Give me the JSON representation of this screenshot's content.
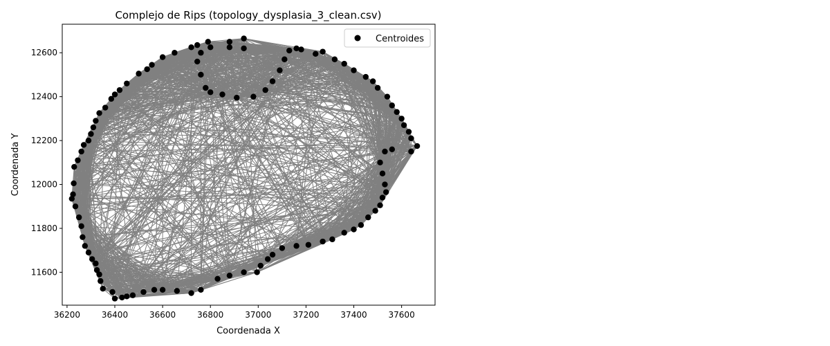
{
  "chart_data": {
    "type": "scatter",
    "title": "Complejo de Rips (topology_dysplasia_3_clean.csv)",
    "xlabel": "Coordenada X",
    "ylabel": "Coordenada Y",
    "xlim": [
      36180,
      37740
    ],
    "ylim": [
      11450,
      12730
    ],
    "xticks": [
      36200,
      36400,
      36600,
      36800,
      37000,
      37200,
      37400,
      37600
    ],
    "yticks": [
      11600,
      11800,
      12000,
      12200,
      12400,
      12600
    ],
    "grid": false,
    "legend": {
      "position": "top-right",
      "entries": [
        "Centroides"
      ]
    },
    "series": [
      {
        "name": "Centroides",
        "marker_color": "#000000",
        "edge_color": "#808080",
        "boundary_points": [
          [
            36940,
            12665
          ],
          [
            36880,
            12650
          ],
          [
            36790,
            12650
          ],
          [
            36745,
            12635
          ],
          [
            36720,
            12625
          ],
          [
            36650,
            12600
          ],
          [
            36600,
            12580
          ],
          [
            36555,
            12545
          ],
          [
            36535,
            12525
          ],
          [
            36500,
            12505
          ],
          [
            36450,
            12460
          ],
          [
            36420,
            12430
          ],
          [
            36400,
            12410
          ],
          [
            36385,
            12390
          ],
          [
            36360,
            12350
          ],
          [
            36335,
            12325
          ],
          [
            36320,
            12290
          ],
          [
            36310,
            12260
          ],
          [
            36300,
            12230
          ],
          [
            36290,
            12200
          ],
          [
            36270,
            12180
          ],
          [
            36260,
            12150
          ],
          [
            36245,
            12110
          ],
          [
            36230,
            12080
          ],
          [
            36228,
            12005
          ],
          [
            36225,
            11955
          ],
          [
            36220,
            11935
          ],
          [
            36235,
            11900
          ],
          [
            36250,
            11850
          ],
          [
            36260,
            11810
          ],
          [
            36265,
            11760
          ],
          [
            36275,
            11720
          ],
          [
            36290,
            11690
          ],
          [
            36305,
            11660
          ],
          [
            36320,
            11640
          ],
          [
            36325,
            11610
          ],
          [
            36335,
            11590
          ],
          [
            36340,
            11560
          ],
          [
            36350,
            11525
          ],
          [
            36390,
            11510
          ],
          [
            36400,
            11480
          ],
          [
            36430,
            11485
          ],
          [
            36450,
            11490
          ],
          [
            36475,
            11495
          ],
          [
            36520,
            11510
          ],
          [
            36565,
            11520
          ],
          [
            36600,
            11520
          ],
          [
            36660,
            11515
          ],
          [
            36720,
            11505
          ],
          [
            36760,
            11520
          ],
          [
            36830,
            11570
          ],
          [
            36880,
            11585
          ],
          [
            36940,
            11600
          ],
          [
            36995,
            11600
          ],
          [
            37010,
            11630
          ],
          [
            37040,
            11660
          ],
          [
            37060,
            11680
          ],
          [
            37100,
            11710
          ],
          [
            37160,
            11720
          ],
          [
            37210,
            11725
          ],
          [
            37270,
            11740
          ],
          [
            37310,
            11750
          ],
          [
            37360,
            11780
          ],
          [
            37400,
            11795
          ],
          [
            37430,
            11815
          ],
          [
            37460,
            11850
          ],
          [
            37490,
            11880
          ],
          [
            37510,
            11905
          ],
          [
            37520,
            11940
          ],
          [
            37535,
            11965
          ],
          [
            37530,
            12000
          ],
          [
            37520,
            12050
          ],
          [
            37510,
            12100
          ],
          [
            37530,
            12150
          ],
          [
            37560,
            12160
          ],
          [
            37640,
            12150
          ],
          [
            37665,
            12175
          ],
          [
            37640,
            12210
          ],
          [
            37630,
            12240
          ],
          [
            37610,
            12270
          ],
          [
            37600,
            12300
          ],
          [
            37580,
            12330
          ],
          [
            37560,
            12360
          ],
          [
            37540,
            12400
          ],
          [
            37500,
            12440
          ],
          [
            37480,
            12470
          ],
          [
            37450,
            12490
          ],
          [
            37400,
            12520
          ],
          [
            37360,
            12550
          ],
          [
            37320,
            12570
          ],
          [
            37270,
            12605
          ],
          [
            37240,
            12595
          ],
          [
            37180,
            12615
          ],
          [
            37160,
            12620
          ],
          [
            37130,
            12610
          ],
          [
            37110,
            12570
          ],
          [
            37090,
            12520
          ],
          [
            37060,
            12470
          ],
          [
            37030,
            12430
          ],
          [
            36980,
            12400
          ],
          [
            36910,
            12395
          ],
          [
            36850,
            12410
          ],
          [
            36800,
            12420
          ],
          [
            36780,
            12440
          ],
          [
            36760,
            12500
          ],
          [
            36745,
            12560
          ],
          [
            36760,
            12600
          ],
          [
            36800,
            12625
          ],
          [
            36880,
            12625
          ],
          [
            36940,
            12620
          ]
        ]
      }
    ]
  }
}
